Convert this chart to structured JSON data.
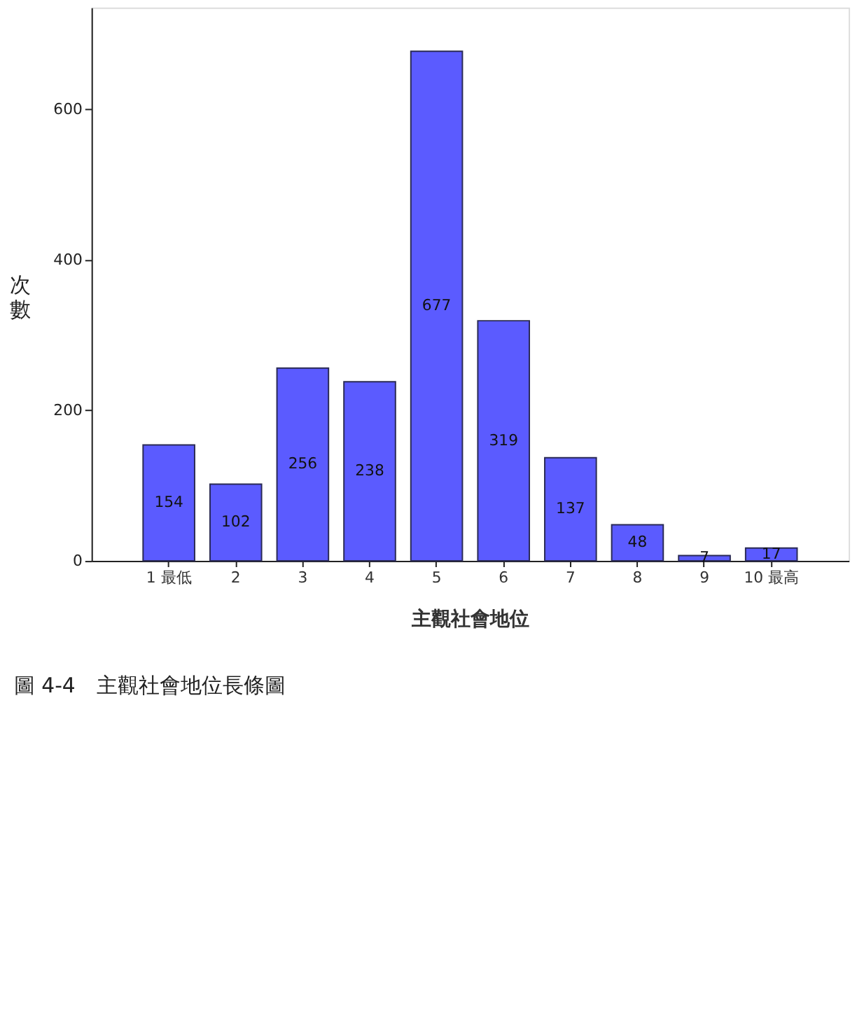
{
  "chart_data": {
    "type": "bar",
    "xlabel": "主觀社會地位",
    "ylabel": "次數",
    "categories": [
      "1 最低",
      "2",
      "3",
      "4",
      "5",
      "6",
      "7",
      "8",
      "9",
      "10 最高"
    ],
    "values": [
      154,
      102,
      256,
      238,
      677,
      319,
      137,
      48,
      7,
      17
    ],
    "color": "#5b5bff",
    "ylim": [
      0,
      735
    ],
    "yticks": [
      0,
      200,
      400,
      600
    ],
    "data_labels": true,
    "annotations": [
      "圖 4-4　主觀社會地位長條圖"
    ]
  }
}
